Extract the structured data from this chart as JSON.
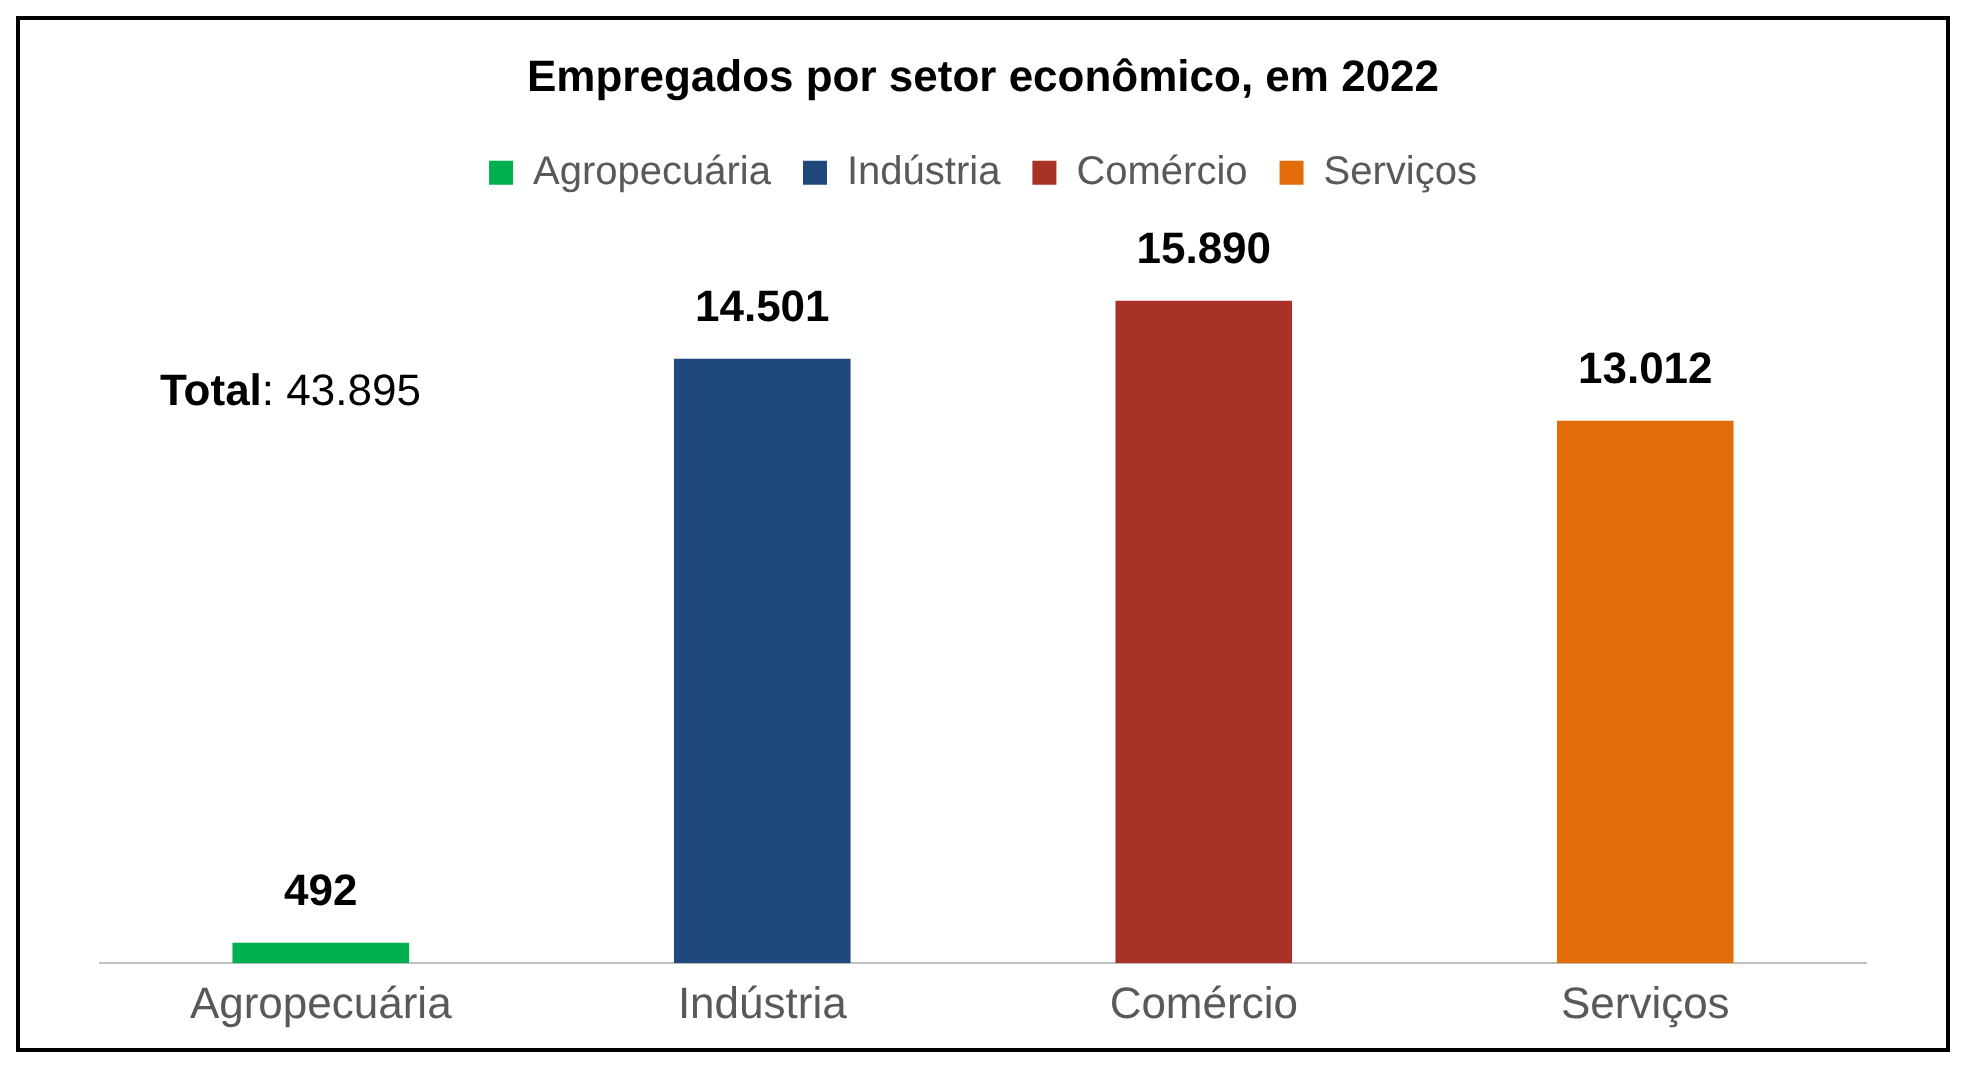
{
  "chart_data": {
    "type": "bar",
    "title": "Empregados por setor econômico, em 2022",
    "categories": [
      "Agropecuária",
      "Indústria",
      "Comércio",
      "Serviços"
    ],
    "series": [
      {
        "name": "Agropecuária",
        "color": "#00b050",
        "values": [
          492,
          null,
          null,
          null
        ],
        "value_labels": [
          "492",
          null,
          null,
          null
        ]
      },
      {
        "name": "Indústria",
        "color": "#1f497d",
        "values": [
          null,
          14501,
          null,
          null
        ],
        "value_labels": [
          null,
          "14.501",
          null,
          null
        ]
      },
      {
        "name": "Comércio",
        "color": "#a93226",
        "values": [
          null,
          null,
          15890,
          null
        ],
        "value_labels": [
          null,
          null,
          "15.890",
          null
        ]
      },
      {
        "name": "Serviços",
        "color": "#e36c0a",
        "values": [
          null,
          null,
          null,
          13012
        ],
        "value_labels": [
          null,
          null,
          null,
          "13.012"
        ]
      }
    ],
    "annotations": [
      "Total: 43.895"
    ],
    "legend": "top",
    "grid": false,
    "tick_labels": "x"
  }
}
